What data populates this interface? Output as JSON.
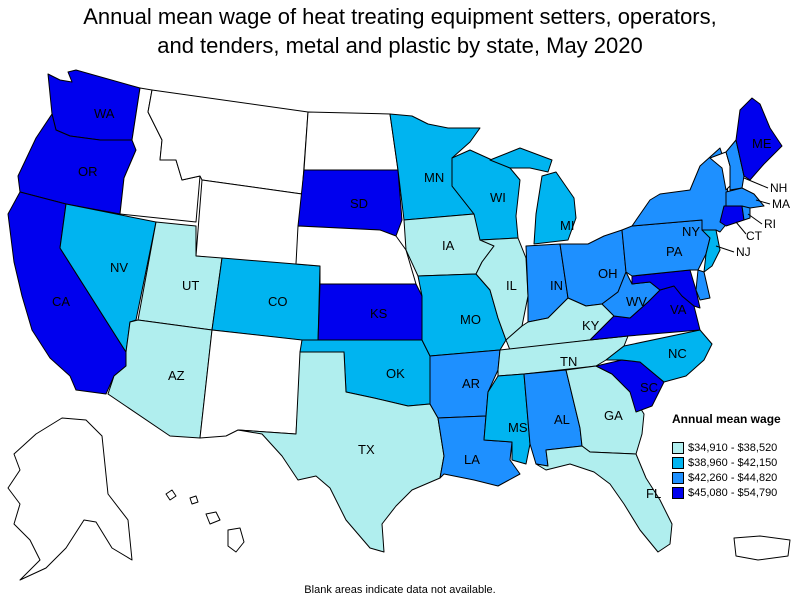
{
  "title_line1": "Annual mean wage of heat treating equipment setters, operators,",
  "title_line2": "and tenders, metal and plastic by state, May 2020",
  "footnote": "Blank areas indicate data not available.",
  "legend": {
    "title": "Annual mean wage",
    "items": [
      {
        "label": "$34,910 - $38,520",
        "color": "#b0eeee"
      },
      {
        "label": "$38,960 - $42,150",
        "color": "#00b4f0"
      },
      {
        "label": "$42,260 - $44,820",
        "color": "#1e90ff"
      },
      {
        "label": "$45,080 - $54,790",
        "color": "#0000ee"
      }
    ]
  },
  "no_data_color": "#ffffff",
  "states": {
    "WA": {
      "label": "WA",
      "tier": 3
    },
    "OR": {
      "label": "OR",
      "tier": 3
    },
    "CA": {
      "label": "CA",
      "tier": 3
    },
    "ID": {
      "label": "",
      "tier": null
    },
    "NV": {
      "label": "NV",
      "tier": 1
    },
    "MT": {
      "label": "",
      "tier": null
    },
    "WY": {
      "label": "",
      "tier": null
    },
    "UT": {
      "label": "UT",
      "tier": 0
    },
    "AZ": {
      "label": "AZ",
      "tier": 0
    },
    "CO": {
      "label": "CO",
      "tier": 1
    },
    "NM": {
      "label": "",
      "tier": null
    },
    "ND": {
      "label": "",
      "tier": null
    },
    "SD": {
      "label": "SD",
      "tier": 3
    },
    "NE": {
      "label": "",
      "tier": null
    },
    "KS": {
      "label": "KS",
      "tier": 3
    },
    "OK": {
      "label": "OK",
      "tier": 1
    },
    "TX": {
      "label": "TX",
      "tier": 0
    },
    "MN": {
      "label": "MN",
      "tier": 1
    },
    "IA": {
      "label": "IA",
      "tier": 0
    },
    "MO": {
      "label": "MO",
      "tier": 1
    },
    "AR": {
      "label": "AR",
      "tier": 2
    },
    "LA": {
      "label": "LA",
      "tier": 2
    },
    "WI": {
      "label": "WI",
      "tier": 1
    },
    "IL": {
      "label": "IL",
      "tier": 0
    },
    "MI": {
      "label": "MI",
      "tier": 1
    },
    "IN": {
      "label": "IN",
      "tier": 2
    },
    "OH": {
      "label": "OH",
      "tier": 2
    },
    "KY": {
      "label": "KY",
      "tier": 0
    },
    "TN": {
      "label": "TN",
      "tier": 0
    },
    "MS": {
      "label": "MS",
      "tier": 1
    },
    "AL": {
      "label": "AL",
      "tier": 2
    },
    "GA": {
      "label": "GA",
      "tier": 0
    },
    "FL": {
      "label": "FL",
      "tier": 0
    },
    "SC": {
      "label": "SC",
      "tier": 3
    },
    "NC": {
      "label": "NC",
      "tier": 1
    },
    "VA": {
      "label": "VA",
      "tier": 3
    },
    "WV": {
      "label": "WV",
      "tier": 2
    },
    "PA": {
      "label": "PA",
      "tier": 2
    },
    "NY": {
      "label": "NY",
      "tier": 2
    },
    "NJ": {
      "label": "NJ",
      "tier": 1
    },
    "DE": {
      "label": "",
      "tier": 2
    },
    "MD": {
      "label": "",
      "tier": 3
    },
    "CT": {
      "label": "CT",
      "tier": 3
    },
    "RI": {
      "label": "RI",
      "tier": 2
    },
    "MA": {
      "label": "MA",
      "tier": 2
    },
    "VT": {
      "label": "",
      "tier": null
    },
    "NH": {
      "label": "NH",
      "tier": 2
    },
    "ME": {
      "label": "ME",
      "tier": 3
    },
    "AK": {
      "label": "",
      "tier": null
    },
    "HI": {
      "label": "",
      "tier": null
    },
    "PR": {
      "label": "",
      "tier": null
    }
  }
}
